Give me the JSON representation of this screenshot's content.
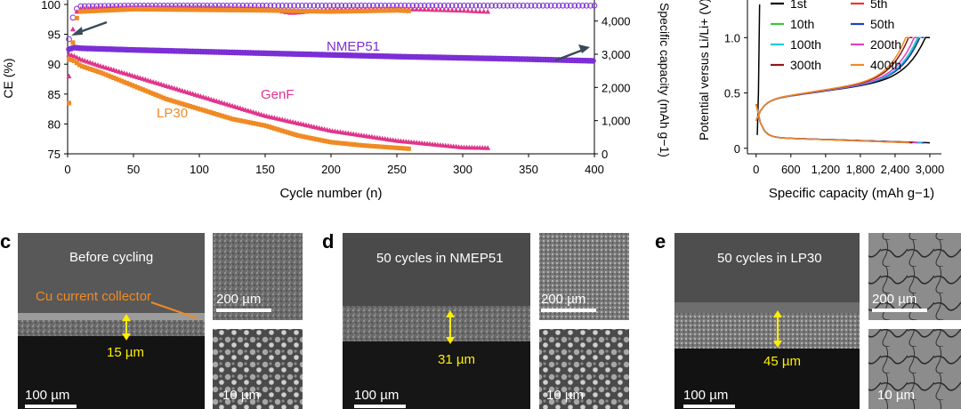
{
  "chart_data": [
    {
      "type": "scatter",
      "xlabel": "Cycle number (n)",
      "ylabel": "CE (%)",
      "y2label": "Specific capacity (mAh g−1)",
      "xlim": [
        0,
        400
      ],
      "ylim": [
        75,
        100
      ],
      "y2lim": [
        0,
        4500
      ],
      "x_ticks": [
        "0",
        "50",
        "100",
        "150",
        "200",
        "250",
        "300",
        "350",
        "400"
      ],
      "y_ticks": [
        "75",
        "80",
        "85",
        "90",
        "95",
        "100"
      ],
      "y2_ticks": [
        "0",
        "1,000",
        "2,000",
        "3,000",
        "4,000"
      ],
      "annotations": [
        "NMEP51",
        "GenF",
        "LP30"
      ],
      "series": [
        {
          "name": "NMEP51",
          "color": "#7b2fd6",
          "kind": "capacity",
          "x": [
            1,
            5,
            10,
            50,
            100,
            150,
            200,
            250,
            300,
            350,
            400
          ],
          "y": [
            3150,
            3200,
            3180,
            3130,
            3080,
            3030,
            2980,
            2930,
            2890,
            2850,
            2800
          ]
        },
        {
          "name": "GenF",
          "color": "#e0348a",
          "kind": "capacity",
          "x": [
            1,
            5,
            10,
            25,
            50,
            100,
            150,
            200,
            250,
            300,
            320
          ],
          "y": [
            3000,
            2950,
            2850,
            2650,
            2350,
            1750,
            1150,
            700,
            400,
            200,
            180
          ]
        },
        {
          "name": "LP30",
          "color": "#f08a24",
          "kind": "capacity",
          "x": [
            1,
            5,
            10,
            25,
            50,
            75,
            100,
            125,
            150,
            175,
            200,
            225,
            260
          ],
          "y": [
            2850,
            2800,
            2650,
            2450,
            2050,
            1650,
            1350,
            1050,
            850,
            550,
            350,
            250,
            150
          ]
        },
        {
          "name": "NMEP51",
          "color": "#7b2fd6",
          "kind": "ce",
          "x": [
            1,
            5,
            10,
            50,
            100,
            200,
            300,
            400
          ],
          "y": [
            94.2,
            99.0,
            99.7,
            99.8,
            99.8,
            99.8,
            99.8,
            99.8
          ]
        },
        {
          "name": "GenF",
          "color": "#e0348a",
          "kind": "ce",
          "x": [
            1,
            5,
            10,
            50,
            100,
            150,
            170,
            200,
            250,
            300,
            320
          ],
          "y": [
            88.0,
            98.5,
            99.3,
            99.5,
            99.5,
            99.3,
            98.6,
            99.2,
            99.3,
            99.0,
            98.8
          ]
        },
        {
          "name": "LP30",
          "color": "#f08a24",
          "kind": "ce",
          "x": [
            1,
            5,
            10,
            50,
            100,
            150,
            200,
            250,
            260
          ],
          "y": [
            83.5,
            97.0,
            98.8,
            99.2,
            99.1,
            99.0,
            98.8,
            99.0,
            98.9
          ]
        }
      ]
    },
    {
      "type": "line",
      "xlabel": "Specific capacity (mAh g−1)",
      "ylabel": "Potential versus Li/Li+ (V)",
      "xlim": [
        -150,
        3200
      ],
      "ylim": [
        -0.05,
        1.3
      ],
      "x_ticks": [
        "0",
        "600",
        "1,200",
        "1,800",
        "2,400",
        "3,000"
      ],
      "y_ticks": [
        "0",
        "0.5",
        "1.0"
      ],
      "legend": [
        "1st",
        "5th",
        "10th",
        "50th",
        "100th",
        "200th",
        "300th",
        "400th"
      ],
      "series": [
        {
          "name": "1st",
          "color": "#000000",
          "cap": 3000
        },
        {
          "name": "5th",
          "color": "#e8382e",
          "cap": 2900
        },
        {
          "name": "10th",
          "color": "#38c93a",
          "cap": 2880
        },
        {
          "name": "50th",
          "color": "#1f3ec8",
          "cap": 2900
        },
        {
          "name": "100th",
          "color": "#1ec8e0",
          "cap": 2860
        },
        {
          "name": "200th",
          "color": "#e040c0",
          "cap": 2800
        },
        {
          "name": "300th",
          "color": "#8a1a1a",
          "cap": 2700
        },
        {
          "name": "400th",
          "color": "#f08a24",
          "cap": 2650
        }
      ]
    }
  ],
  "panels": {
    "c": {
      "letter": "c",
      "title": "Before cycling",
      "collector": "Cu current collector",
      "thickness": "15 µm",
      "scale_main": "100 µm",
      "scale_top": "200 µm",
      "scale_bottom": "10 µm"
    },
    "d": {
      "letter": "d",
      "title": "50 cycles in NMEP51",
      "thickness": "31 µm",
      "scale_main": "100 µm",
      "scale_top": "200 µm",
      "scale_bottom": "10 µm"
    },
    "e": {
      "letter": "e",
      "title": "50 cycles in LP30",
      "thickness": "45 µm",
      "scale_main": "100 µm",
      "scale_top": "200 µm",
      "scale_bottom": "10 µm"
    }
  }
}
